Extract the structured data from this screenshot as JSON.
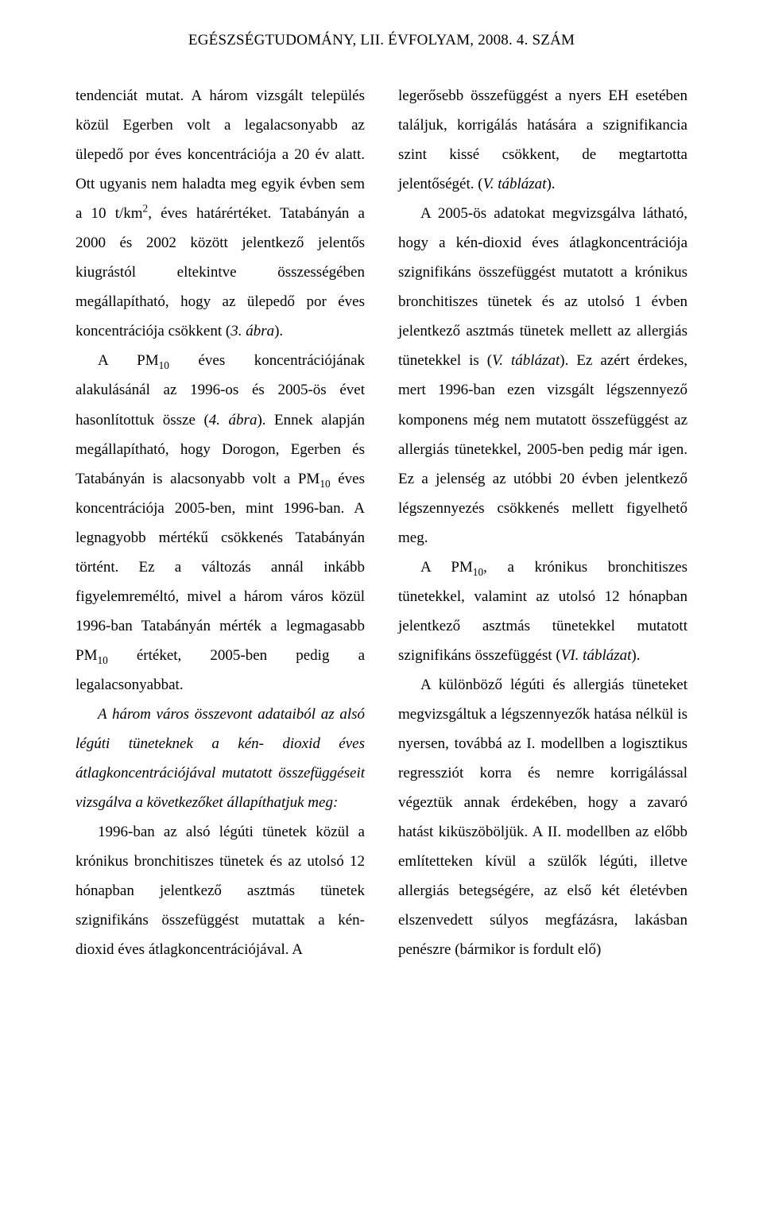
{
  "header": {
    "text": "EGÉSZSÉGTUDOMÁNY, LII. ÉVFOLYAM, 2008. 4. SZÁM"
  },
  "left": {
    "p1_a": "tendenciát mutat. A három vizsgált település közül Egerben volt a legalacsonyabb az ülepedő por éves koncentrációja a 20 év alatt. Ott ugyanis nem haladta meg egyik évben sem a 10 t/km",
    "p1_b": ", éves határértéket. Tatabányán a 2000 és 2002 között jelentkező jelentős kiugrástól eltekintve összességében megállapítható, hogy az ülepedő por éves koncentrációja csökkent (",
    "p1_c": "3. ábra",
    "p1_d": ").",
    "p2_a": "A PM",
    "p2_b": " éves koncentrációjának alakulásánál az 1996-os és 2005-ös évet hasonlítottuk össze (",
    "p2_c": "4. ábra",
    "p2_d": "). Ennek alapján megállapítható, hogy Dorogon, Egerben és Tatabányán is alacsonyabb volt a PM",
    "p2_e": " éves koncentrációja 2005-ben, mint 1996-ban. A legnagyobb mértékű csökkenés Tatabányán történt. Ez a változás annál inkább figyelemreméltó, mivel a három város közül 1996-ban Tatabányán mérték a legmagasabb PM",
    "p2_f": " értéket, 2005-ben pedig a legalacsonyabbat.",
    "p3": "A három város összevont adataiból az alsó légúti tüneteknek a kén- dioxid éves átlagkoncentrációjával mutatott összefüggéseit vizsgálva a következőket állapíthatjuk meg:",
    "p4": "1996-ban az alsó légúti tünetek közül a krónikus bronchitiszes tünetek és az utolsó 12 hónapban jelentkező asztmás tünetek szignifikáns összefüggést mutattak a kén-dioxid éves átlagkoncentrációjával. A"
  },
  "right": {
    "p1_a": "legerősebb összefüggést a nyers EH esetében találjuk, korrigálás hatására a szignifikancia szint kissé csökkent, de megtartotta jelentőségét. (",
    "p1_b": "V. táblázat",
    "p1_c": ").",
    "p2_a": "A 2005-ös adatokat megvizsgálva látható, hogy a kén-dioxid éves átlagkoncentrációja szignifikáns összefüggést mutatott a krónikus bronchitiszes tünetek és az utolsó 1 évben jelentkező asztmás tünetek mellett az allergiás tünetekkel is (",
    "p2_b": "V. táblázat",
    "p2_c": "). Ez azért érdekes, mert 1996-ban ezen vizsgált légszennyező komponens még nem mutatott összefüggést az allergiás tünetekkel, 2005-ben pedig már igen. Ez a jelenség az utóbbi 20 évben jelentkező légszennyezés csökkenés mellett figyelhető meg.",
    "p3_a": "A PM",
    "p3_b": ", a krónikus bronchitiszes tünetekkel, valamint az utolsó 12 hónapban jelentkező asztmás tünetekkel mutatott szignifikáns összefüggést (",
    "p3_c": "VI. táblázat",
    "p3_d": ").",
    "p4": "A különböző légúti és allergiás tüneteket megvizsgáltuk a légszennyezők hatása nélkül is nyersen, továbbá az I. modellben a logisztikus regressziót korra és nemre korrigálással végeztük annak érdekében, hogy a zavaró hatást kiküszöböljük. A II. modellben az előbb említetteken kívül a szülők légúti, illetve allergiás betegségére, az első két életévben elszenvedett súlyos megfázásra, lakásban penészre (bármikor is fordult elő)"
  },
  "subs": {
    "two": "2",
    "ten": "10"
  }
}
